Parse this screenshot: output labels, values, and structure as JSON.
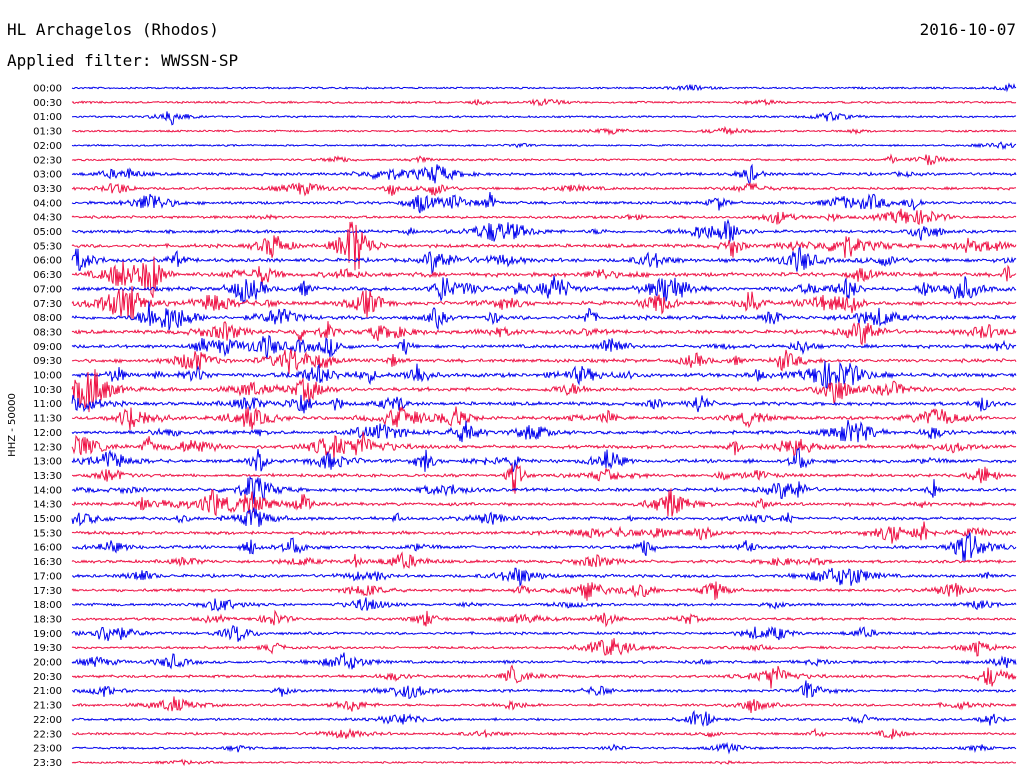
{
  "header": {
    "station": "HL Archagelos (Rhodos)",
    "date": "2016-10-07",
    "filter": "Applied filter: WWSSN-SP"
  },
  "chart_data": {
    "type": "line",
    "ylabel": "HHZ - 50000",
    "colors": [
      "#0000ee",
      "#ee1144"
    ],
    "rows": [
      "00:00",
      "00:30",
      "01:00",
      "01:30",
      "02:00",
      "02:30",
      "03:00",
      "03:30",
      "04:00",
      "04:30",
      "05:00",
      "05:30",
      "06:00",
      "06:30",
      "07:00",
      "07:30",
      "08:00",
      "08:30",
      "09:00",
      "09:30",
      "10:00",
      "10:30",
      "11:00",
      "11:30",
      "12:00",
      "12:30",
      "13:00",
      "13:30",
      "14:00",
      "14:30",
      "15:00",
      "15:30",
      "16:00",
      "16:30",
      "17:00",
      "17:30",
      "18:00",
      "18:30",
      "19:00",
      "19:30",
      "20:00",
      "20:30",
      "21:00",
      "21:30",
      "22:00",
      "22:30",
      "23:00",
      "23:30"
    ],
    "activity": [
      0.4,
      0.55,
      0.5,
      0.45,
      0.3,
      0.6,
      1.2,
      1.0,
      1.3,
      1.0,
      1.3,
      1.6,
      1.7,
      2.0,
      2.0,
      1.8,
      1.9,
      1.7,
      1.6,
      1.6,
      2.0,
      1.7,
      1.6,
      1.5,
      1.6,
      1.6,
      1.6,
      1.4,
      1.5,
      1.5,
      1.4,
      1.4,
      1.4,
      1.2,
      1.3,
      1.2,
      1.0,
      1.1,
      1.0,
      0.9,
      1.1,
      1.1,
      1.0,
      0.9,
      0.9,
      0.8,
      0.6,
      0.4
    ]
  }
}
